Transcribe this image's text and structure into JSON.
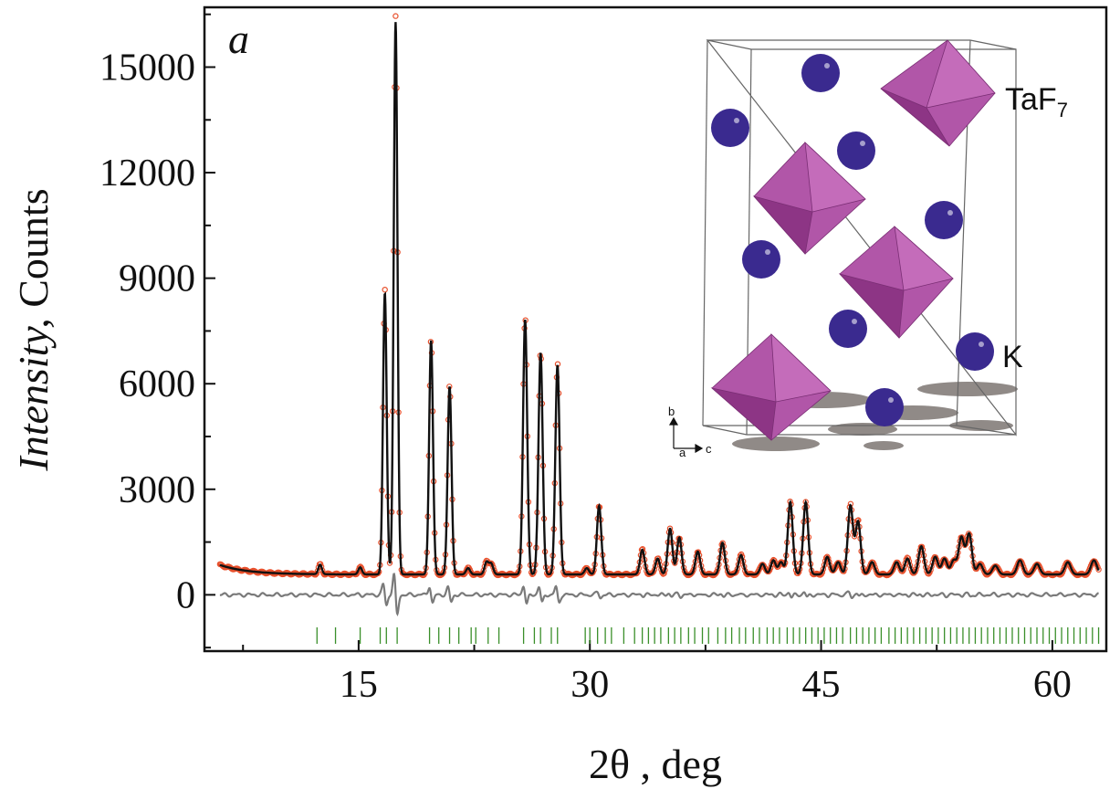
{
  "colors": {
    "observed": "#e8502c",
    "calculated": "#111111",
    "difference": "#7a7a7a",
    "bragg": "#3a8f2a",
    "polyhedron": "#a2429a",
    "atom": "#3a2a8f"
  },
  "panel_label": "a",
  "chart_data": {
    "type": "line",
    "xlabel": "2θ , deg",
    "ylabel_italic": "Intensity,",
    "ylabel_rest": " Counts",
    "xlim": [
      5,
      63.5
    ],
    "ylim": [
      -1600,
      16700
    ],
    "x_ticks": [
      15,
      30,
      45,
      60
    ],
    "x_tick_labels": [
      "15",
      "30",
      "45",
      "60"
    ],
    "y_ticks": [
      0,
      3000,
      6000,
      9000,
      12000,
      15000
    ],
    "y_tick_labels": [
      "0",
      "3000",
      "6000",
      "9000",
      "12000",
      "15000"
    ],
    "background": {
      "start_x": 6,
      "start_y": 850,
      "base_y": 580
    },
    "peaks": [
      {
        "x": 12.5,
        "h": 270
      },
      {
        "x": 15.1,
        "h": 200
      },
      {
        "x": 16.7,
        "h": 8000
      },
      {
        "x": 17.4,
        "h": 15700
      },
      {
        "x": 19.7,
        "h": 6650
      },
      {
        "x": 20.9,
        "h": 5350
      },
      {
        "x": 22.1,
        "h": 180
      },
      {
        "x": 23.3,
        "h": 350
      },
      {
        "x": 23.6,
        "h": 300
      },
      {
        "x": 25.8,
        "h": 7250
      },
      {
        "x": 26.8,
        "h": 6300
      },
      {
        "x": 27.9,
        "h": 5950
      },
      {
        "x": 29.8,
        "h": 180
      },
      {
        "x": 30.6,
        "h": 1950
      },
      {
        "x": 33.4,
        "h": 700
      },
      {
        "x": 34.4,
        "h": 450
      },
      {
        "x": 35.2,
        "h": 1300
      },
      {
        "x": 35.8,
        "h": 1050
      },
      {
        "x": 37.0,
        "h": 650
      },
      {
        "x": 38.6,
        "h": 900
      },
      {
        "x": 39.8,
        "h": 550
      },
      {
        "x": 41.2,
        "h": 300
      },
      {
        "x": 41.9,
        "h": 400
      },
      {
        "x": 42.4,
        "h": 350
      },
      {
        "x": 43.0,
        "h": 2050
      },
      {
        "x": 44.0,
        "h": 2050
      },
      {
        "x": 45.4,
        "h": 500
      },
      {
        "x": 46.1,
        "h": 350
      },
      {
        "x": 46.9,
        "h": 1950
      },
      {
        "x": 47.4,
        "h": 1500
      },
      {
        "x": 48.3,
        "h": 350
      },
      {
        "x": 49.9,
        "h": 350
      },
      {
        "x": 50.6,
        "h": 450
      },
      {
        "x": 51.5,
        "h": 800
      },
      {
        "x": 52.4,
        "h": 500
      },
      {
        "x": 53.0,
        "h": 450
      },
      {
        "x": 53.6,
        "h": 400
      },
      {
        "x": 54.1,
        "h": 1050
      },
      {
        "x": 54.6,
        "h": 1150
      },
      {
        "x": 55.3,
        "h": 300
      },
      {
        "x": 56.3,
        "h": 250
      },
      {
        "x": 57.9,
        "h": 400
      },
      {
        "x": 59.0,
        "h": 300
      },
      {
        "x": 61.0,
        "h": 350
      },
      {
        "x": 62.7,
        "h": 400
      }
    ],
    "bragg_positions": [
      12.3,
      13.5,
      15.1,
      16.4,
      16.8,
      17.5,
      19.6,
      20.2,
      20.9,
      21.5,
      22.3,
      22.6,
      23.4,
      24.1,
      25.7,
      26.4,
      26.8,
      27.5,
      27.9,
      29.7,
      30.0,
      30.5,
      31.0,
      31.4,
      32.2,
      32.9,
      33.4,
      33.8,
      34.2,
      34.6,
      35.1,
      35.5,
      35.9,
      36.4,
      36.8,
      37.3,
      37.7,
      38.3,
      38.8,
      39.2,
      39.7,
      40.1,
      40.6,
      41.0,
      41.5,
      41.9,
      42.3,
      42.8,
      43.2,
      43.6,
      44.0,
      44.4,
      44.8,
      45.2,
      45.6,
      46.0,
      46.4,
      46.9,
      47.3,
      47.7,
      48.1,
      48.5,
      48.9,
      49.4,
      49.8,
      50.2,
      50.6,
      51.0,
      51.4,
      51.8,
      52.2,
      52.6,
      53.0,
      53.4,
      53.8,
      54.2,
      54.6,
      55.0,
      55.4,
      55.8,
      56.2,
      56.6,
      57.0,
      57.4,
      57.8,
      58.2,
      58.6,
      59.0,
      59.4,
      59.8,
      60.2,
      60.6,
      61.0,
      61.4,
      61.8,
      62.2,
      62.6,
      63.0
    ]
  },
  "inset": {
    "label_taf": "TaF",
    "label_taf_sub": "7",
    "label_k": "K",
    "axis_b": "b",
    "axis_a": "a",
    "axis_c": "c"
  }
}
